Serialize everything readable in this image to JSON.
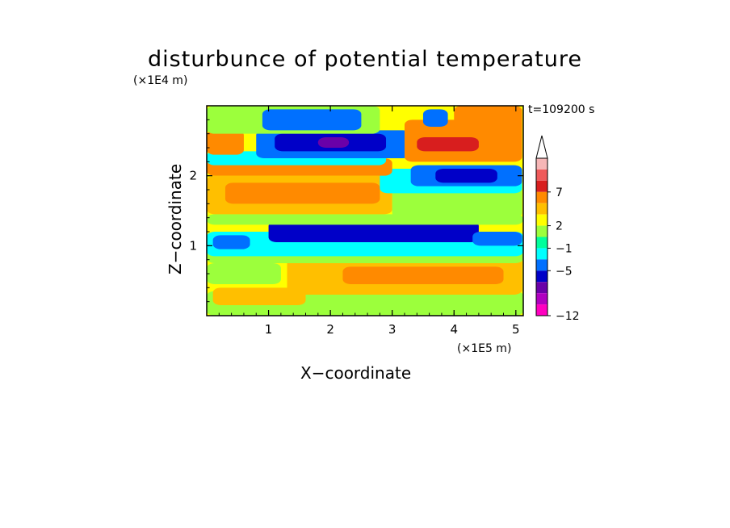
{
  "chart_data": {
    "type": "heatmap",
    "title": "disturbunce of potential temperature",
    "time_label": "t=109200 s",
    "xlabel": "X−coordinate",
    "ylabel": "Z−coordinate",
    "x_unit": "(×1E5 m)",
    "y_unit": "(×1E4 m)",
    "xlim": [
      0,
      5.12
    ],
    "ylim": [
      0,
      3.0
    ],
    "x_ticks": [
      "1",
      "2",
      "3",
      "4",
      "5"
    ],
    "y_ticks": [
      "1",
      "2"
    ],
    "colorbar": {
      "extend": "max",
      "levels_shown": [
        "7",
        "2",
        "−1",
        "−5",
        "−12"
      ],
      "bins_top_to_bottom": [
        "#f6b6b6",
        "#ef5a5a",
        "#d81e1e",
        "#ff8a00",
        "#ffbf00",
        "#ffff00",
        "#9cff3c",
        "#00ff9c",
        "#00ffff",
        "#0070ff",
        "#0000c8",
        "#6a00a8",
        "#b000c0",
        "#ff00c0"
      ]
    },
    "field_layers": [
      {
        "z": 0.0,
        "x": 0.0,
        "w": 5.12,
        "h": 3.0,
        "color": "#ffff00"
      },
      {
        "z": 0.0,
        "x": 0.0,
        "w": 5.12,
        "h": 0.35,
        "color": "#9cff3c"
      },
      {
        "z": 0.15,
        "x": 0.1,
        "w": 1.5,
        "h": 0.25,
        "color": "#ffbf00"
      },
      {
        "z": 0.3,
        "x": 1.3,
        "w": 3.8,
        "h": 0.6,
        "color": "#ffbf00"
      },
      {
        "z": 0.45,
        "x": 2.2,
        "w": 2.6,
        "h": 0.25,
        "color": "#ff8a00"
      },
      {
        "z": 0.45,
        "x": 0.0,
        "w": 1.2,
        "h": 0.3,
        "color": "#9cff3c"
      },
      {
        "z": 0.75,
        "x": 0.0,
        "w": 5.12,
        "h": 0.2,
        "color": "#9cff3c"
      },
      {
        "z": 0.85,
        "x": 0.0,
        "w": 5.12,
        "h": 0.35,
        "color": "#00ffff"
      },
      {
        "z": 0.95,
        "x": 0.1,
        "w": 0.6,
        "h": 0.2,
        "color": "#0070ff"
      },
      {
        "z": 1.05,
        "x": 1.0,
        "w": 3.4,
        "h": 0.3,
        "color": "#0000c8"
      },
      {
        "z": 1.0,
        "x": 4.3,
        "w": 0.8,
        "h": 0.2,
        "color": "#0070ff"
      },
      {
        "z": 1.3,
        "x": 0.0,
        "w": 5.12,
        "h": 0.15,
        "color": "#9cff3c"
      },
      {
        "z": 1.45,
        "x": 0.0,
        "w": 3.0,
        "h": 0.55,
        "color": "#ffbf00"
      },
      {
        "z": 1.6,
        "x": 0.3,
        "w": 2.5,
        "h": 0.3,
        "color": "#ff8a00"
      },
      {
        "z": 1.4,
        "x": 3.0,
        "w": 2.1,
        "h": 0.5,
        "color": "#9cff3c"
      },
      {
        "z": 1.75,
        "x": 2.8,
        "w": 2.3,
        "h": 0.35,
        "color": "#00ffff"
      },
      {
        "z": 1.85,
        "x": 3.3,
        "w": 1.8,
        "h": 0.3,
        "color": "#0070ff"
      },
      {
        "z": 1.9,
        "x": 3.7,
        "w": 1.0,
        "h": 0.2,
        "color": "#0000c8"
      },
      {
        "z": 2.0,
        "x": 0.0,
        "w": 3.0,
        "h": 0.25,
        "color": "#ff8a00"
      },
      {
        "z": 2.15,
        "x": 0.0,
        "w": 2.9,
        "h": 0.2,
        "color": "#00ffff"
      },
      {
        "z": 2.3,
        "x": 0.0,
        "w": 0.6,
        "h": 0.35,
        "color": "#ff8a00"
      },
      {
        "z": 2.25,
        "x": 0.8,
        "w": 2.5,
        "h": 0.4,
        "color": "#0070ff"
      },
      {
        "z": 2.35,
        "x": 1.1,
        "w": 1.8,
        "h": 0.25,
        "color": "#0000c8"
      },
      {
        "z": 2.4,
        "x": 1.8,
        "w": 0.5,
        "h": 0.15,
        "color": "#6a00a8"
      },
      {
        "z": 2.2,
        "x": 3.2,
        "w": 1.9,
        "h": 0.6,
        "color": "#ff8a00"
      },
      {
        "z": 2.35,
        "x": 3.4,
        "w": 1.0,
        "h": 0.2,
        "color": "#d81e1e"
      },
      {
        "z": 2.6,
        "x": 0.0,
        "w": 2.8,
        "h": 0.4,
        "color": "#9cff3c"
      },
      {
        "z": 2.65,
        "x": 0.9,
        "w": 1.6,
        "h": 0.3,
        "color": "#0070ff"
      },
      {
        "z": 2.7,
        "x": 3.5,
        "w": 0.4,
        "h": 0.25,
        "color": "#0070ff"
      },
      {
        "z": 2.65,
        "x": 4.0,
        "w": 1.1,
        "h": 0.35,
        "color": "#ff8a00"
      }
    ]
  }
}
